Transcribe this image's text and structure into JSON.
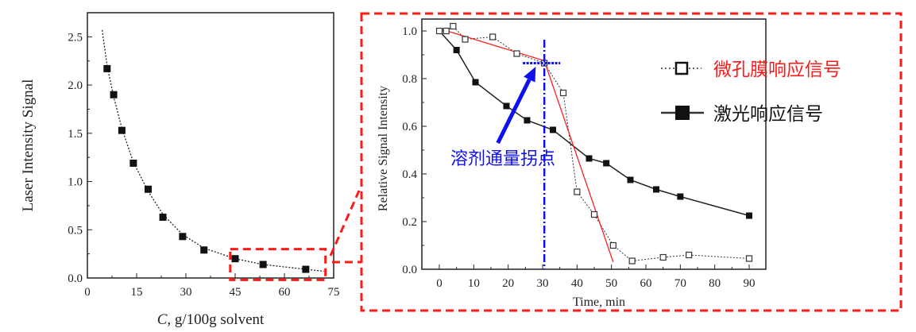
{
  "colors": {
    "highlight": "#ff1a1a",
    "annotation": "#1010ee",
    "series": "#111111",
    "fit": "#ff2020"
  },
  "chart_data": [
    {
      "type": "scatter",
      "title": "",
      "xlabel_italic": "C",
      "xlabel_rest": ", g/100g solvent",
      "ylabel": "Laser Intensity Signal",
      "xlim": [
        0,
        75
      ],
      "ylim": [
        0,
        2.75
      ],
      "xticks": [
        0,
        15,
        30,
        45,
        60,
        75
      ],
      "xtick_labels": [
        "0",
        "15",
        "30",
        "45",
        "60",
        "75"
      ],
      "yticks": [
        0,
        0.5,
        1.0,
        1.5,
        2.0,
        2.5
      ],
      "ytick_labels": [
        "0.0",
        "0.5",
        "1.0",
        "1.5",
        "2.0",
        "2.5"
      ],
      "series": [
        {
          "name": "data",
          "marker": "filled-square",
          "x": [
            6,
            8,
            10.5,
            14,
            18.5,
            23,
            29,
            35.5,
            45,
            53.5,
            66.5
          ],
          "y": [
            2.17,
            1.9,
            1.53,
            1.19,
            0.92,
            0.63,
            0.43,
            0.29,
            0.2,
            0.14,
            0.09
          ]
        },
        {
          "name": "fit",
          "style": "dotted",
          "x": [
            4.5,
            6,
            8,
            10.5,
            14,
            18.5,
            23,
            29,
            35.5,
            45,
            53.5,
            66.5,
            72
          ],
          "y": [
            2.57,
            2.2,
            1.88,
            1.55,
            1.2,
            0.9,
            0.66,
            0.45,
            0.31,
            0.2,
            0.14,
            0.09,
            0.07
          ]
        }
      ],
      "highlight_region": {
        "x": [
          43.5,
          72.5
        ],
        "y": [
          -0.02,
          0.3
        ]
      }
    },
    {
      "type": "line",
      "xlabel": "Time, min",
      "ylabel": "Relative Signal Intensity",
      "xlim": [
        -7.5,
        96
      ],
      "ylim": [
        0,
        1.05
      ],
      "xticks": [
        0,
        10,
        20,
        30,
        40,
        50,
        60,
        70,
        80,
        90
      ],
      "xtick_labels": [
        "0",
        "10",
        "20",
        "30",
        "40",
        "50",
        "60",
        "70",
        "80",
        "90"
      ],
      "yticks": [
        0,
        0.2,
        0.4,
        0.6,
        0.8,
        1.0
      ],
      "ytick_labels": [
        "0.0",
        "0.2",
        "0.4",
        "0.6",
        "0.8",
        "1.0"
      ],
      "legend_position": "top-right",
      "series": [
        {
          "name": "微孔膜响应信号",
          "marker": "open-square",
          "style": "dotted",
          "color": "#ff1a1a",
          "x": [
            0,
            2,
            4,
            7.5,
            15.5,
            22.5,
            30.5,
            36,
            40,
            45,
            50.5,
            56,
            65,
            72.5,
            90
          ],
          "y": [
            1.0,
            1.0,
            1.02,
            0.965,
            0.975,
            0.905,
            0.865,
            0.74,
            0.325,
            0.23,
            0.1,
            0.035,
            0.05,
            0.06,
            0.045
          ]
        },
        {
          "name": "激光响应信号",
          "marker": "filled-square",
          "style": "solid",
          "color": "#111111",
          "x": [
            0,
            5,
            10.5,
            19.5,
            25.5,
            33,
            43.5,
            48.5,
            55.5,
            63,
            70,
            90
          ],
          "y": [
            1.0,
            0.92,
            0.785,
            0.685,
            0.625,
            0.585,
            0.465,
            0.445,
            0.375,
            0.335,
            0.305,
            0.225
          ]
        }
      ],
      "fit_lines": [
        {
          "x": [
            0,
            30.5
          ],
          "y": [
            1.01,
            0.875
          ]
        },
        {
          "x": [
            30.5,
            50.5
          ],
          "y": [
            0.875,
            0.03
          ]
        }
      ],
      "annotation": {
        "text": "溶剂通量拐点",
        "inflection_x": 30.5,
        "inflection_y": 0.865,
        "arrow_from": [
          17,
          0.53
        ],
        "arrow_to": [
          28,
          0.85
        ]
      }
    }
  ]
}
